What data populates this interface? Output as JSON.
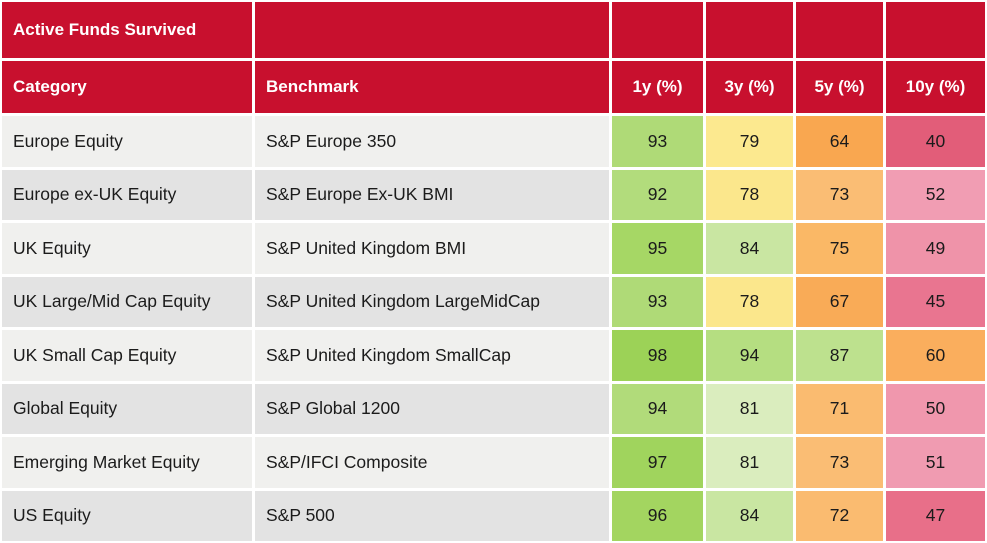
{
  "chart_data": {
    "type": "table",
    "title": "Active Funds Survived",
    "columns": [
      "Category",
      "Benchmark",
      "1y (%)",
      "3y (%)",
      "5y (%)",
      "10y (%)"
    ],
    "rows": [
      {
        "category": "Europe Equity",
        "benchmark": "S&P Europe 350",
        "values": [
          93,
          79,
          64,
          40
        ],
        "cell_colors": [
          "#AFDA77",
          "#FCE98F",
          "#F9A750",
          "#E25D79"
        ]
      },
      {
        "category": "Europe  ex-UK Equity",
        "benchmark": "S&P Europe Ex-UK BMI",
        "values": [
          92,
          78,
          73,
          52
        ],
        "cell_colors": [
          "#B2DC7C",
          "#FBE78C",
          "#FABD74",
          "#F19DB3"
        ]
      },
      {
        "category": "UK Equity",
        "benchmark": "S&P United Kingdom BMI",
        "values": [
          95,
          84,
          75,
          49
        ],
        "cell_colors": [
          "#A6D765",
          "#C9E6A2",
          "#FAB866",
          "#EF93A9"
        ]
      },
      {
        "category": "UK Large/Mid Cap Equity",
        "benchmark": "S&P United Kingdom LargeMidCap",
        "values": [
          93,
          78,
          67,
          45
        ],
        "cell_colors": [
          "#AFDA77",
          "#FBE78C",
          "#F9AB57",
          "#E97590"
        ]
      },
      {
        "category": "UK Small Cap Equity",
        "benchmark": "S&P United Kingdom SmallCap",
        "values": [
          98,
          94,
          87,
          60
        ],
        "cell_colors": [
          "#9CD257",
          "#B5DE81",
          "#BDE18E",
          "#FAAE5D"
        ]
      },
      {
        "category": "Global Equity",
        "benchmark": "S&P Global 1200",
        "values": [
          94,
          81,
          71,
          50
        ],
        "cell_colors": [
          "#B1DB7A",
          "#DAEDBE",
          "#FABB70",
          "#F097AD"
        ]
      },
      {
        "category": "Emerging Market Equity",
        "benchmark": "S&P/IFCI Composite",
        "values": [
          97,
          81,
          73,
          51
        ],
        "cell_colors": [
          "#A0D45D",
          "#DAEDBE",
          "#FABD74",
          "#F09BB1"
        ]
      },
      {
        "category": "US Equity",
        "benchmark": "S&P 500",
        "values": [
          96,
          84,
          72,
          47
        ],
        "cell_colors": [
          "#A3D560",
          "#C9E6A2",
          "#FABB70",
          "#E86F89"
        ]
      }
    ],
    "legend": "cell color encodes survivorship: green (high %) to yellow/orange (mid %) to pink/red (low %)"
  },
  "style": {
    "header_bg": "#C8102E",
    "header_text": "#FFFFFF",
    "row_bg_odd": "#F0F0EE",
    "row_bg_even": "#E3E3E3",
    "body_text": "#1B1B1B",
    "divider": "#FFFFFF"
  }
}
